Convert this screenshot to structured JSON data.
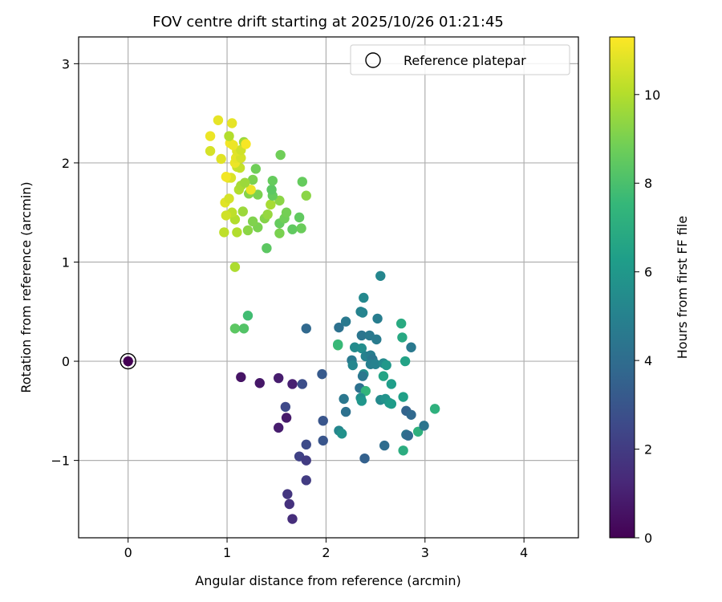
{
  "chart_data": {
    "type": "scatter",
    "title": "FOV centre drift starting at 2025/10/26 01:21:45",
    "xlabel": "Angular distance from reference (arcmin)",
    "ylabel": "Rotation from reference (arcmin)",
    "xlim": [
      -0.5,
      4.55
    ],
    "ylim": [
      -1.78,
      3.27
    ],
    "xticks": [
      0,
      1,
      2,
      3,
      4
    ],
    "xtick_labels": [
      "0",
      "1",
      "2",
      "3",
      "4"
    ],
    "yticks": [
      -1,
      0,
      1,
      2,
      3
    ],
    "ytick_labels": [
      "−1",
      "0",
      "1",
      "2",
      "3"
    ],
    "grid": true,
    "legend": {
      "position": "top-right",
      "entries": [
        {
          "label": "Reference platepar",
          "marker": "open-circle"
        }
      ]
    },
    "reference_point": {
      "x": 0,
      "y": 0,
      "hours": 0
    },
    "colorbar": {
      "label": "Hours from first FF file",
      "colormap": "viridis",
      "range": [
        0,
        11.3
      ],
      "ticks": [
        0,
        2,
        4,
        6,
        8,
        10
      ],
      "tick_labels": [
        "0",
        "2",
        "4",
        "6",
        "8",
        "10"
      ],
      "stops": [
        "#440154",
        "#482878",
        "#3e4989",
        "#31688e",
        "#26828e",
        "#1f9e89",
        "#35b779",
        "#6ece58",
        "#b5de2b",
        "#fde725"
      ]
    },
    "points": [
      {
        "x": 1.14,
        "y": -0.16,
        "h": 0.6
      },
      {
        "x": 1.33,
        "y": -0.22,
        "h": 0.7
      },
      {
        "x": 1.52,
        "y": -0.17,
        "h": 0.9
      },
      {
        "x": 1.66,
        "y": -0.23,
        "h": 1.0
      },
      {
        "x": 1.6,
        "y": -0.57,
        "h": 0.8
      },
      {
        "x": 1.52,
        "y": -0.67,
        "h": 0.9
      },
      {
        "x": 1.76,
        "y": -0.23,
        "h": 2.7
      },
      {
        "x": 1.59,
        "y": -0.46,
        "h": 2.5
      },
      {
        "x": 1.8,
        "y": 0.33,
        "h": 3.8
      },
      {
        "x": 1.96,
        "y": -0.13,
        "h": 3.2
      },
      {
        "x": 1.97,
        "y": -0.6,
        "h": 3.0
      },
      {
        "x": 1.8,
        "y": -0.84,
        "h": 2.6
      },
      {
        "x": 1.97,
        "y": -0.8,
        "h": 3.0
      },
      {
        "x": 1.73,
        "y": -0.96,
        "h": 2.2
      },
      {
        "x": 1.8,
        "y": -1.0,
        "h": 2.0
      },
      {
        "x": 1.8,
        "y": -1.2,
        "h": 2.0
      },
      {
        "x": 1.61,
        "y": -1.34,
        "h": 1.8
      },
      {
        "x": 1.63,
        "y": -1.44,
        "h": 1.6
      },
      {
        "x": 1.66,
        "y": -1.59,
        "h": 1.5
      },
      {
        "x": 2.13,
        "y": 0.34,
        "h": 4.2
      },
      {
        "x": 2.2,
        "y": 0.4,
        "h": 4.6
      },
      {
        "x": 2.38,
        "y": 0.64,
        "h": 5.3
      },
      {
        "x": 2.55,
        "y": 0.86,
        "h": 5.2
      },
      {
        "x": 2.35,
        "y": 0.5,
        "h": 5.0
      },
      {
        "x": 2.37,
        "y": 0.49,
        "h": 5.1
      },
      {
        "x": 2.52,
        "y": 0.43,
        "h": 4.8
      },
      {
        "x": 2.36,
        "y": 0.26,
        "h": 4.4
      },
      {
        "x": 2.44,
        "y": 0.26,
        "h": 4.6
      },
      {
        "x": 2.51,
        "y": 0.22,
        "h": 4.7
      },
      {
        "x": 2.29,
        "y": 0.14,
        "h": 5.4
      },
      {
        "x": 2.36,
        "y": 0.13,
        "h": 5.5
      },
      {
        "x": 2.26,
        "y": 0.01,
        "h": 4.6
      },
      {
        "x": 2.27,
        "y": -0.04,
        "h": 5.2
      },
      {
        "x": 2.4,
        "y": 0.05,
        "h": 5.0
      },
      {
        "x": 2.45,
        "y": 0.06,
        "h": 4.8
      },
      {
        "x": 2.47,
        "y": 0.02,
        "h": 4.5
      },
      {
        "x": 2.45,
        "y": -0.03,
        "h": 4.9
      },
      {
        "x": 2.5,
        "y": -0.03,
        "h": 5.0
      },
      {
        "x": 2.58,
        "y": -0.02,
        "h": 5.4
      },
      {
        "x": 2.61,
        "y": -0.04,
        "h": 6.0
      },
      {
        "x": 2.38,
        "y": -0.13,
        "h": 5.6
      },
      {
        "x": 2.37,
        "y": -0.15,
        "h": 4.5
      },
      {
        "x": 2.34,
        "y": -0.27,
        "h": 4.2
      },
      {
        "x": 2.4,
        "y": -0.3,
        "h": 7.4
      },
      {
        "x": 2.35,
        "y": -0.37,
        "h": 5.6
      },
      {
        "x": 2.36,
        "y": -0.4,
        "h": 5.9
      },
      {
        "x": 2.18,
        "y": -0.38,
        "h": 4.5
      },
      {
        "x": 2.2,
        "y": -0.51,
        "h": 4.2
      },
      {
        "x": 2.13,
        "y": -0.7,
        "h": 5.2
      },
      {
        "x": 2.16,
        "y": -0.73,
        "h": 5.7
      },
      {
        "x": 2.39,
        "y": -0.98,
        "h": 3.5
      },
      {
        "x": 2.58,
        "y": -0.15,
        "h": 6.6
      },
      {
        "x": 2.55,
        "y": -0.39,
        "h": 5.4
      },
      {
        "x": 2.6,
        "y": -0.38,
        "h": 5.8
      },
      {
        "x": 2.64,
        "y": -0.42,
        "h": 6.0
      },
      {
        "x": 2.66,
        "y": -0.43,
        "h": 6.2
      },
      {
        "x": 2.66,
        "y": -0.23,
        "h": 6.3
      },
      {
        "x": 2.78,
        "y": -0.36,
        "h": 6.4
      },
      {
        "x": 2.59,
        "y": -0.85,
        "h": 4.0
      },
      {
        "x": 2.81,
        "y": -0.5,
        "h": 3.6
      },
      {
        "x": 2.86,
        "y": -0.54,
        "h": 3.8
      },
      {
        "x": 2.81,
        "y": -0.74,
        "h": 4.3
      },
      {
        "x": 2.83,
        "y": -0.75,
        "h": 3.9
      },
      {
        "x": 2.93,
        "y": -0.71,
        "h": 7.2
      },
      {
        "x": 2.78,
        "y": -0.9,
        "h": 7.0
      },
      {
        "x": 2.76,
        "y": 0.38,
        "h": 6.9
      },
      {
        "x": 2.77,
        "y": 0.24,
        "h": 6.8
      },
      {
        "x": 2.8,
        "y": 0.0,
        "h": 6.5
      },
      {
        "x": 2.86,
        "y": 0.14,
        "h": 4.6
      },
      {
        "x": 2.99,
        "y": -0.65,
        "h": 4.4
      },
      {
        "x": 3.1,
        "y": -0.48,
        "h": 7.2
      },
      {
        "x": 2.12,
        "y": 0.16,
        "h": 7.8
      },
      {
        "x": 2.12,
        "y": 0.17,
        "h": 7.6
      },
      {
        "x": 1.08,
        "y": 0.33,
        "h": 8.4
      },
      {
        "x": 1.17,
        "y": 0.33,
        "h": 8.2
      },
      {
        "x": 1.21,
        "y": 0.46,
        "h": 7.8
      },
      {
        "x": 1.08,
        "y": 0.95,
        "h": 9.9
      },
      {
        "x": 1.4,
        "y": 1.14,
        "h": 8.4
      },
      {
        "x": 0.97,
        "y": 1.3,
        "h": 10.2
      },
      {
        "x": 1.1,
        "y": 1.3,
        "h": 10.0
      },
      {
        "x": 1.21,
        "y": 1.32,
        "h": 9.3
      },
      {
        "x": 1.31,
        "y": 1.35,
        "h": 9.0
      },
      {
        "x": 1.26,
        "y": 1.41,
        "h": 9.1
      },
      {
        "x": 1.08,
        "y": 1.43,
        "h": 10.0
      },
      {
        "x": 1.38,
        "y": 1.44,
        "h": 9.2
      },
      {
        "x": 1.41,
        "y": 1.48,
        "h": 9.5
      },
      {
        "x": 1.05,
        "y": 1.5,
        "h": 10.2
      },
      {
        "x": 1.16,
        "y": 1.51,
        "h": 9.6
      },
      {
        "x": 0.99,
        "y": 1.47,
        "h": 10.5
      },
      {
        "x": 1.53,
        "y": 1.29,
        "h": 9.0
      },
      {
        "x": 1.53,
        "y": 1.39,
        "h": 8.6
      },
      {
        "x": 1.58,
        "y": 1.44,
        "h": 8.8
      },
      {
        "x": 1.6,
        "y": 1.5,
        "h": 8.9
      },
      {
        "x": 1.66,
        "y": 1.33,
        "h": 8.5
      },
      {
        "x": 1.75,
        "y": 1.34,
        "h": 8.7
      },
      {
        "x": 1.73,
        "y": 1.45,
        "h": 8.5
      },
      {
        "x": 1.53,
        "y": 1.62,
        "h": 9.3
      },
      {
        "x": 1.44,
        "y": 1.58,
        "h": 9.8
      },
      {
        "x": 1.46,
        "y": 1.67,
        "h": 8.6
      },
      {
        "x": 1.45,
        "y": 1.73,
        "h": 8.4
      },
      {
        "x": 1.46,
        "y": 1.82,
        "h": 8.6
      },
      {
        "x": 1.31,
        "y": 1.68,
        "h": 9.0
      },
      {
        "x": 1.22,
        "y": 1.69,
        "h": 9.2
      },
      {
        "x": 1.24,
        "y": 1.73,
        "h": 11.0
      },
      {
        "x": 1.26,
        "y": 1.83,
        "h": 9.0
      },
      {
        "x": 1.29,
        "y": 1.94,
        "h": 8.8
      },
      {
        "x": 1.12,
        "y": 1.73,
        "h": 10.0
      },
      {
        "x": 1.14,
        "y": 1.77,
        "h": 9.8
      },
      {
        "x": 1.18,
        "y": 1.8,
        "h": 9.6
      },
      {
        "x": 0.98,
        "y": 1.6,
        "h": 10.8
      },
      {
        "x": 1.02,
        "y": 1.64,
        "h": 10.6
      },
      {
        "x": 1.01,
        "y": 1.85,
        "h": 10.9
      },
      {
        "x": 1.04,
        "y": 1.85,
        "h": 10.7
      },
      {
        "x": 0.99,
        "y": 1.86,
        "h": 11.1
      },
      {
        "x": 1.1,
        "y": 1.96,
        "h": 10.4
      },
      {
        "x": 1.13,
        "y": 1.95,
        "h": 10.3
      },
      {
        "x": 1.08,
        "y": 2.0,
        "h": 11.0
      },
      {
        "x": 1.09,
        "y": 2.05,
        "h": 10.9
      },
      {
        "x": 1.14,
        "y": 2.05,
        "h": 10.6
      },
      {
        "x": 1.1,
        "y": 2.12,
        "h": 10.8
      },
      {
        "x": 1.14,
        "y": 2.13,
        "h": 10.5
      },
      {
        "x": 1.03,
        "y": 2.2,
        "h": 11.1
      },
      {
        "x": 1.06,
        "y": 2.18,
        "h": 11.0
      },
      {
        "x": 1.17,
        "y": 2.21,
        "h": 9.6
      },
      {
        "x": 1.19,
        "y": 2.19,
        "h": 11.2
      },
      {
        "x": 1.05,
        "y": 2.4,
        "h": 10.9
      },
      {
        "x": 0.91,
        "y": 2.43,
        "h": 10.9
      },
      {
        "x": 0.83,
        "y": 2.27,
        "h": 11.0
      },
      {
        "x": 1.02,
        "y": 2.27,
        "h": 10.0
      },
      {
        "x": 0.83,
        "y": 2.12,
        "h": 10.6
      },
      {
        "x": 0.94,
        "y": 2.04,
        "h": 10.8
      },
      {
        "x": 1.54,
        "y": 2.08,
        "h": 8.8
      },
      {
        "x": 1.76,
        "y": 1.81,
        "h": 8.6
      },
      {
        "x": 1.8,
        "y": 1.67,
        "h": 9.3
      },
      {
        "x": 0.0,
        "y": 0.0,
        "h": 0.0
      }
    ]
  }
}
